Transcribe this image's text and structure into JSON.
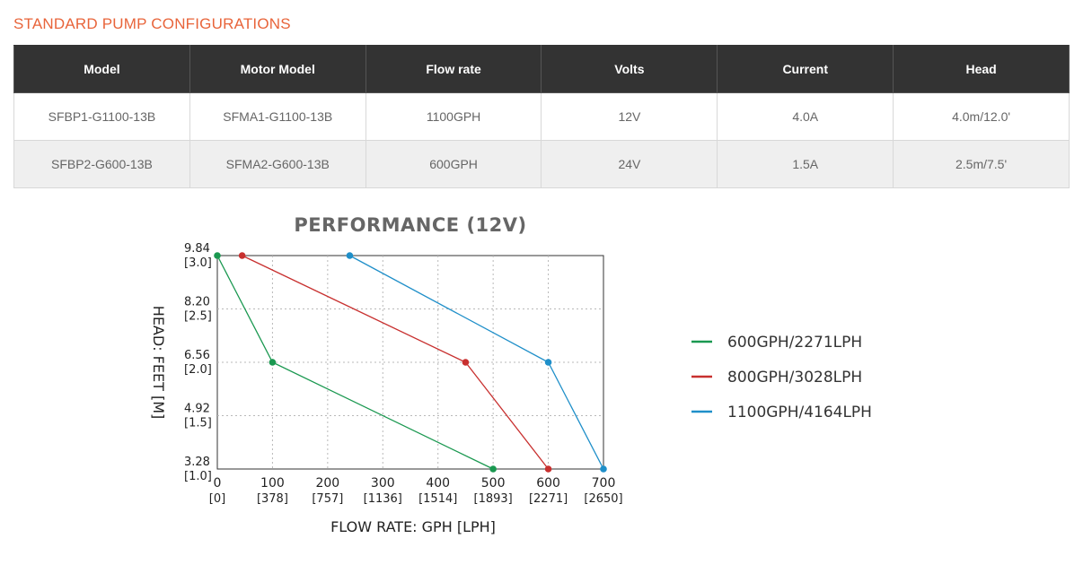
{
  "section_title": "STANDARD PUMP CONFIGURATIONS",
  "table": {
    "columns": [
      "Model",
      "Motor Model",
      "Flow rate",
      "Volts",
      "Current",
      "Head"
    ],
    "rows": [
      [
        "SFBP1-G1100-13B",
        "SFMA1-G1100-13B",
        "1100GPH",
        "12V",
        "4.0A",
        "4.0m/12.0'"
      ],
      [
        "SFBP2-G600-13B",
        "SFMA2-G600-13B",
        "600GPH",
        "24V",
        "1.5A",
        "2.5m/7.5'"
      ]
    ]
  },
  "chart_data": {
    "type": "line",
    "title": "PERFORMANCE (12V)",
    "xlabel": "FLOW RATE: GPH [LPH]",
    "ylabel": "HEAD: FEET [M]",
    "xlim": [
      0,
      700
    ],
    "ylim": [
      3.28,
      9.84
    ],
    "x_ticks": [
      {
        "value": 0,
        "label": "0",
        "sub": "[0]"
      },
      {
        "value": 100,
        "label": "100",
        "sub": "[378]"
      },
      {
        "value": 200,
        "label": "200",
        "sub": "[757]"
      },
      {
        "value": 300,
        "label": "300",
        "sub": "[1136]"
      },
      {
        "value": 400,
        "label": "400",
        "sub": "[1514]"
      },
      {
        "value": 500,
        "label": "500",
        "sub": "[1893]"
      },
      {
        "value": 600,
        "label": "600",
        "sub": "[2271]"
      },
      {
        "value": 700,
        "label": "700",
        "sub": "[2650]"
      }
    ],
    "y_ticks": [
      {
        "value": 9.84,
        "label": "9.84",
        "sub": "[3.0]"
      },
      {
        "value": 8.2,
        "label": "8.20",
        "sub": "[2.5]"
      },
      {
        "value": 6.56,
        "label": "6.56",
        "sub": "[2.0]"
      },
      {
        "value": 4.92,
        "label": "4.92",
        "sub": "[1.5]"
      },
      {
        "value": 3.28,
        "label": "3.28",
        "sub": "[1.0]"
      }
    ],
    "grid": true,
    "legend": "right",
    "series": [
      {
        "name": "600GPH/2271LPH",
        "color": "#1a9850",
        "points": [
          [
            0,
            9.84
          ],
          [
            100,
            6.56
          ],
          [
            500,
            3.28
          ]
        ]
      },
      {
        "name": "800GPH/3028LPH",
        "color": "#c8302f",
        "points": [
          [
            45,
            9.84
          ],
          [
            450,
            6.56
          ],
          [
            600,
            3.28
          ]
        ]
      },
      {
        "name": "1100GPH/4164LPH",
        "color": "#1f8fc9",
        "points": [
          [
            240,
            9.84
          ],
          [
            600,
            6.56
          ],
          [
            700,
            3.28
          ]
        ]
      }
    ]
  }
}
